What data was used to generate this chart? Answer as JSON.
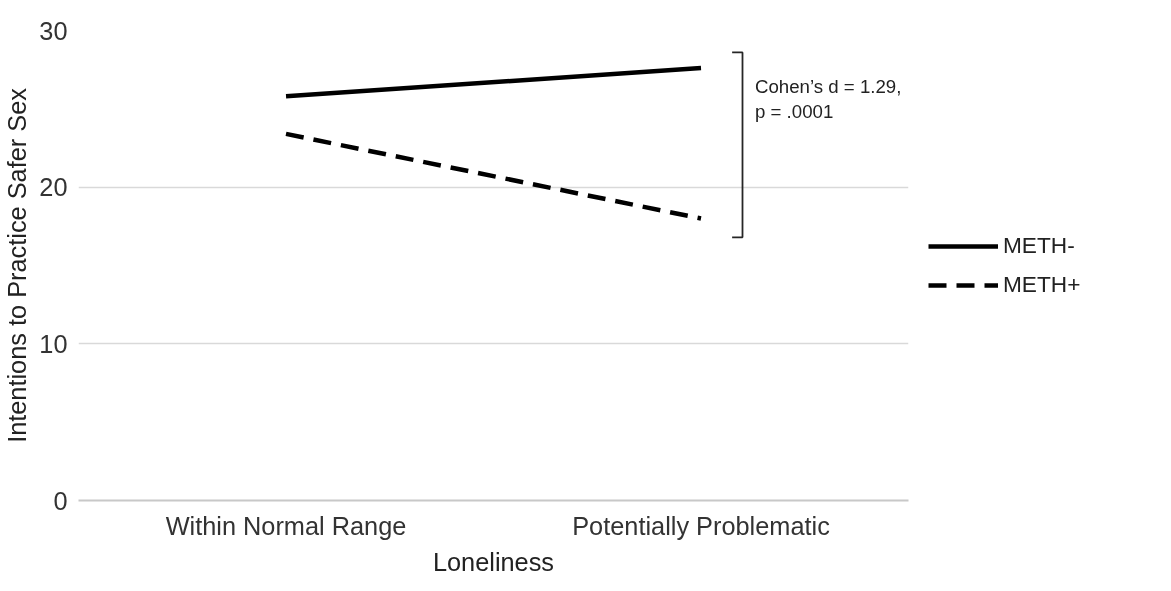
{
  "chart_data": {
    "type": "line",
    "xlabel": "Loneliness",
    "ylabel": "Intentions to Practice Safer Sex",
    "categories": [
      "Within Normal Range",
      "Potentially Problematic"
    ],
    "series": [
      {
        "name": "METH-",
        "color": "#000000",
        "values": [
          25.8,
          27.6
        ],
        "line_style": "solid"
      },
      {
        "name": "METH+",
        "color": "#000000",
        "values": [
          23.4,
          18.0
        ],
        "line_style": "dashed"
      }
    ],
    "ylim": [
      0,
      30
    ],
    "yticks": [
      0,
      10,
      20,
      30
    ],
    "grid": "y",
    "legend": "right",
    "marker": "none",
    "annotations": [
      "Cohen’s d = 1.29,\np = .0001"
    ]
  }
}
